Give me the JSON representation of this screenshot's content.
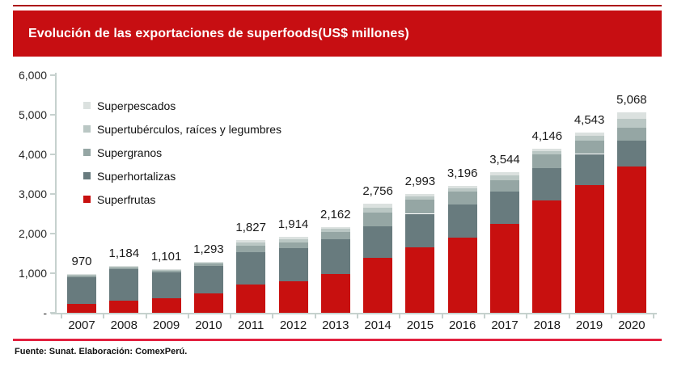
{
  "banner": {
    "title": "Evolución de las exportaciones de superfoods(US$ millones)",
    "color": "#c70e12",
    "top_rule_color": "#ac1319"
  },
  "footer": {
    "source": "Fuente: Sunat. Elaboración: ComexPerú.",
    "rule_color": "#e2203e"
  },
  "chart_data": {
    "type": "bar",
    "stacked": true,
    "title": "Evolución de las exportaciones de superfoods (US$ millones)",
    "xlabel": "",
    "ylabel": "",
    "grid": false,
    "legend_position": "top-left-inside",
    "categories": [
      "2007",
      "2008",
      "2009",
      "2010",
      "2011",
      "2012",
      "2013",
      "2014",
      "2015",
      "2016",
      "2017",
      "2018",
      "2019",
      "2020"
    ],
    "series": [
      {
        "name": "Superfrutas",
        "color": "#c8100f",
        "values": [
          230,
          310,
          370,
          480,
          710,
          800,
          980,
          1390,
          1650,
          1900,
          2240,
          2830,
          3230,
          3690
        ]
      },
      {
        "name": "Superhortalizas",
        "color": "#687b7e",
        "values": [
          660,
          790,
          660,
          710,
          830,
          830,
          880,
          790,
          850,
          830,
          815,
          820,
          780,
          660
        ]
      },
      {
        "name": "Supergranos",
        "color": "#95a6a4",
        "values": [
          40,
          45,
          40,
          65,
          150,
          150,
          190,
          360,
          350,
          330,
          300,
          350,
          330,
          330
        ]
      },
      {
        "name": "Supertubérculos, raíces y legumbres",
        "color": "#bac7c4",
        "values": [
          20,
          20,
          16,
          20,
          80,
          80,
          70,
          110,
          90,
          85,
          110,
          90,
          130,
          220
        ]
      },
      {
        "name": "Superpescados",
        "color": "#dbe1df",
        "values": [
          20,
          19,
          15,
          18,
          57,
          54,
          42,
          106,
          53,
          51,
          79,
          56,
          73,
          168
        ]
      }
    ],
    "totals": [
      970,
      1184,
      1101,
      1293,
      1827,
      1914,
      2162,
      2756,
      2993,
      3196,
      3544,
      4146,
      4543,
      5068
    ],
    "total_labels": [
      "970",
      "1,184",
      "1,101",
      "1,293",
      "1,827",
      "1,914",
      "2,162",
      "2,756",
      "2,993",
      "3,196",
      "3,544",
      "4,146",
      "4,543",
      "5,068"
    ],
    "legend_order": [
      "Superpescados",
      "Supertubérculos, raíces y legumbres",
      "Supergranos",
      "Superhortalizas",
      "Superfrutas"
    ],
    "y_axis": {
      "min": 0,
      "max": 6000,
      "tick_step": 1000,
      "tick_labels": [
        "-",
        "1,000",
        "2,000",
        "3,000",
        "4,000",
        "5,000",
        "6,000"
      ],
      "axis_color": "#c6d1ce"
    }
  }
}
